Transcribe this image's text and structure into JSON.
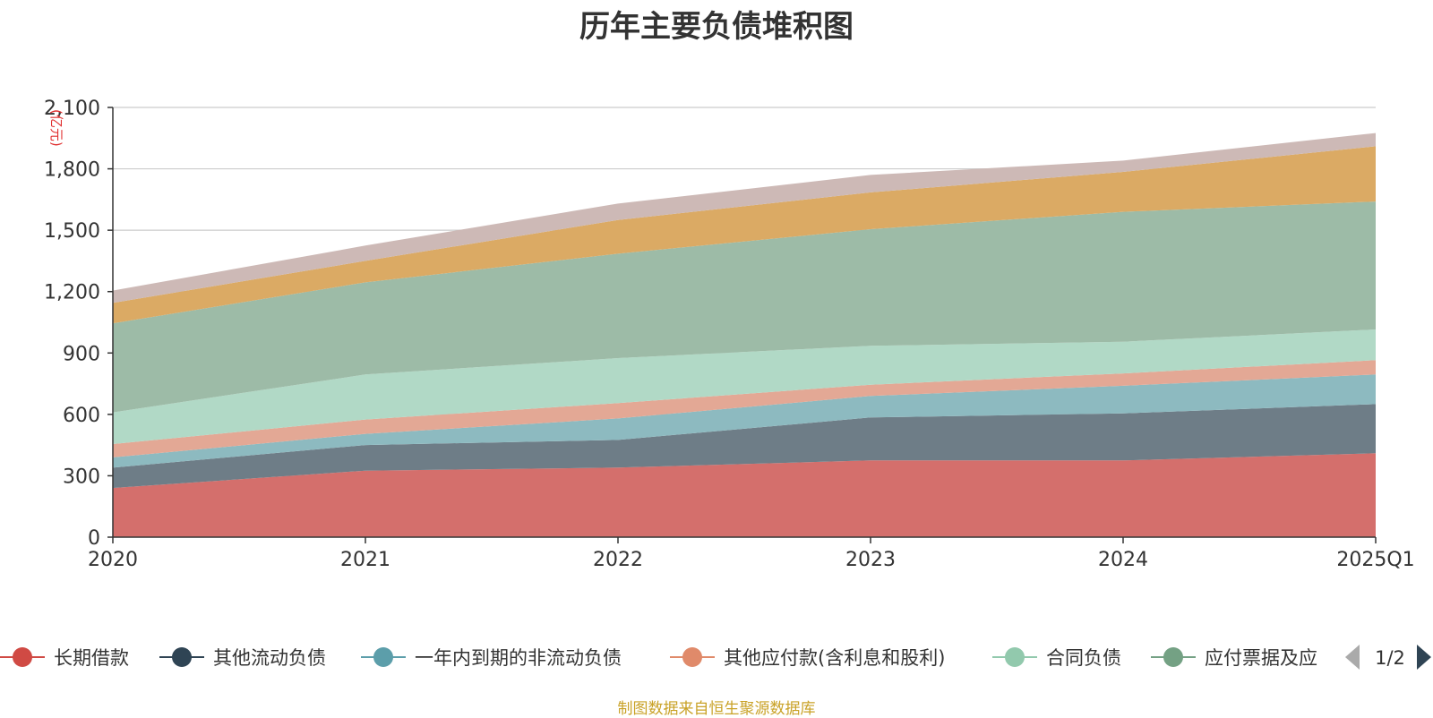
{
  "chart_data": {
    "type": "area",
    "stacked": true,
    "title": "历年主要负债堆积图",
    "y_unit": "(亿元)",
    "categories": [
      "2020",
      "2021",
      "2022",
      "2023",
      "2024",
      "2025Q1"
    ],
    "ylim": [
      0,
      2100
    ],
    "yticks": [
      "0",
      "300",
      "600",
      "900",
      "1,200",
      "1,500",
      "1,800",
      "2,100"
    ],
    "grid": true,
    "series": [
      {
        "name": "长期借款",
        "color": "#d46f6c",
        "values": [
          240,
          325,
          340,
          375,
          375,
          410
        ]
      },
      {
        "name": "其他流动负债",
        "color": "#6e7d87",
        "values": [
          100,
          125,
          135,
          210,
          230,
          240
        ]
      },
      {
        "name": "一年内到期的非流动负债",
        "color": "#8dbac0",
        "values": [
          50,
          55,
          105,
          105,
          135,
          145
        ]
      },
      {
        "name": "其他应付款(含利息和股利)",
        "color": "#e3a895",
        "values": [
          65,
          70,
          75,
          55,
          60,
          70
        ]
      },
      {
        "name": "合同负债",
        "color": "#b1d9c6",
        "values": [
          155,
          220,
          220,
          190,
          155,
          150
        ]
      },
      {
        "name": "应付票据及应付账款",
        "color": "#9dbba7",
        "values": [
          435,
          450,
          510,
          570,
          635,
          625
        ]
      },
      {
        "color": "#dbaa64",
        "values": [
          100,
          105,
          165,
          180,
          195,
          270
        ]
      },
      {
        "color": "#cdb9b6",
        "values": [
          60,
          75,
          80,
          85,
          55,
          65
        ]
      }
    ],
    "legend": {
      "position": "bottom",
      "visible_items": [
        {
          "label": "长期借款",
          "color": "#d04a44"
        },
        {
          "label": "其他流动负债",
          "color": "#2f4454"
        },
        {
          "label": "一年内到期的非流动负债",
          "color": "#5c9eaa"
        },
        {
          "label": "其他应付款(含利息和股利)",
          "color": "#e08a6a"
        },
        {
          "label": "合同负债",
          "color": "#92c9ad"
        },
        {
          "label": "应付票据及应",
          "color": "#74a184"
        }
      ],
      "page_indicator": "1/2"
    }
  },
  "source_note": "制图数据来自恒生聚源数据库"
}
